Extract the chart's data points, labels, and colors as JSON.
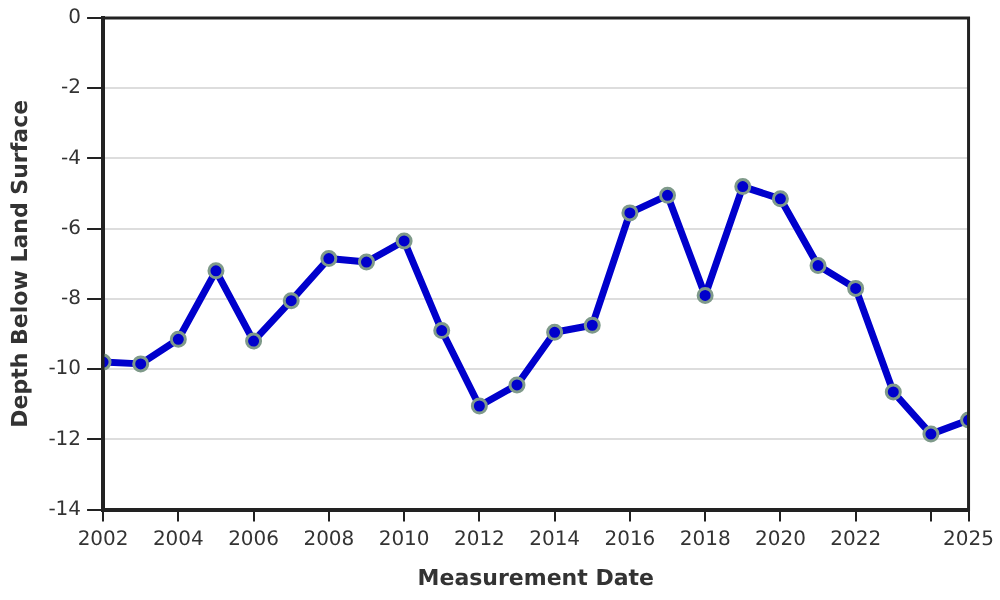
{
  "chart_data": {
    "type": "line",
    "xlabel": "Measurement Date",
    "ylabel": "Depth Below Land Surface",
    "x": [
      2002,
      2003,
      2004,
      2005,
      2006,
      2007,
      2008,
      2009,
      2010,
      2011,
      2012,
      2013,
      2014,
      2015,
      2016,
      2017,
      2018,
      2019,
      2020,
      2021,
      2022,
      2023,
      2024,
      2025
    ],
    "series": [
      {
        "color": "#0000cc",
        "values": [
          -9.8,
          -9.85,
          -9.15,
          -7.2,
          -9.2,
          -8.05,
          -6.85,
          -6.95,
          -6.35,
          -8.9,
          -11.05,
          -10.45,
          -8.95,
          -8.75,
          -5.55,
          -5.05,
          -7.9,
          -4.8,
          -5.15,
          -7.05,
          -7.7,
          -10.65,
          -11.85,
          -11.45
        ]
      }
    ],
    "xlim": [
      2002,
      2025
    ],
    "xticks": [
      2002,
      2004,
      2006,
      2008,
      2010,
      2012,
      2014,
      2016,
      2018,
      2020,
      2022,
      {
        "value": 2024,
        "label": null
      },
      2025
    ],
    "ylim": [
      -14,
      0
    ],
    "yticks": [
      -14,
      -12,
      -10,
      -8,
      -6,
      -4,
      -2,
      0
    ],
    "grid": "y",
    "legend": false,
    "marker": "circle",
    "line_style": "solid"
  }
}
